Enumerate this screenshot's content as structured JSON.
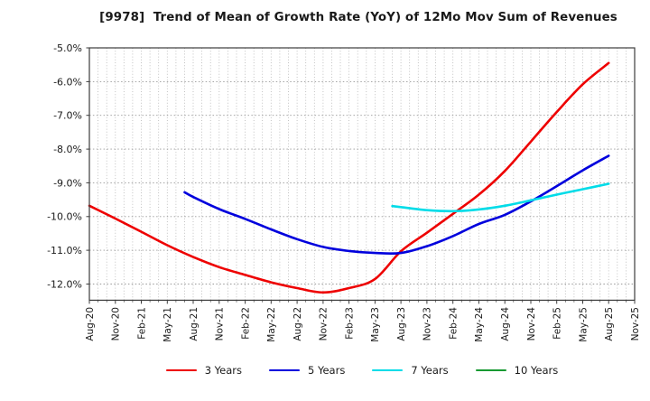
{
  "title": "[9978]  Trend of Mean of Growth Rate (YoY) of 12Mo Mov Sum of Revenues",
  "ticker": "9978",
  "chart_data": {
    "type": "line",
    "title": "[9978]  Trend of Mean of Growth Rate (YoY) of 12Mo Mov Sum of Revenues",
    "xlabel": "",
    "ylabel": "",
    "x_axis": {
      "unit": "months since Aug-2020",
      "xlim_months": [
        0,
        63
      ],
      "tick_interval_months": 3,
      "minor_grid_interval_months": 1,
      "x_ticklabels": [
        "Aug-20",
        "Nov-20",
        "Feb-21",
        "May-21",
        "Aug-21",
        "Nov-21",
        "Feb-22",
        "May-22",
        "Aug-22",
        "Nov-22",
        "Feb-23",
        "May-23",
        "Aug-23",
        "Nov-23",
        "Feb-24",
        "May-24",
        "Aug-24",
        "Nov-24",
        "Feb-25",
        "May-25",
        "Aug-25",
        "Nov-25"
      ],
      "labels_rotated_degrees": 90
    },
    "y_axis": {
      "ylim": [
        -12.48,
        -5.0
      ],
      "y_ticks": [
        -5,
        -6,
        -7,
        -8,
        -9,
        -10,
        -11,
        -12
      ],
      "y_ticklabels": [
        "-5.0%",
        "-6.0%",
        "-7.0%",
        "-8.0%",
        "-9.0%",
        "-10.0%",
        "-11.0%",
        "-12.0%"
      ],
      "unit": "percent"
    },
    "grid": {
      "enabled": true,
      "style": "dotted",
      "color": "#aaaaaa"
    },
    "legend_position": "bottom-center",
    "series": [
      {
        "name": "3 Years",
        "color": "#ee0000",
        "points_month_value": [
          [
            0,
            -9.68
          ],
          [
            3,
            -10.06
          ],
          [
            6,
            -10.45
          ],
          [
            9,
            -10.85
          ],
          [
            12,
            -11.2
          ],
          [
            15,
            -11.5
          ],
          [
            18,
            -11.73
          ],
          [
            21,
            -11.95
          ],
          [
            24,
            -12.12
          ],
          [
            27,
            -12.25
          ],
          [
            30,
            -12.12
          ],
          [
            33,
            -11.85
          ],
          [
            36,
            -11.03
          ],
          [
            39,
            -10.48
          ],
          [
            42,
            -9.92
          ],
          [
            45,
            -9.35
          ],
          [
            48,
            -8.65
          ],
          [
            51,
            -7.78
          ],
          [
            54,
            -6.9
          ],
          [
            57,
            -6.08
          ],
          [
            60,
            -5.45
          ]
        ]
      },
      {
        "name": "5 Years",
        "color": "#0000dd",
        "points_month_value": [
          [
            11,
            -9.28
          ],
          [
            12,
            -9.42
          ],
          [
            15,
            -9.78
          ],
          [
            18,
            -10.07
          ],
          [
            21,
            -10.38
          ],
          [
            24,
            -10.67
          ],
          [
            27,
            -10.9
          ],
          [
            30,
            -11.02
          ],
          [
            33,
            -11.08
          ],
          [
            36,
            -11.08
          ],
          [
            39,
            -10.88
          ],
          [
            42,
            -10.58
          ],
          [
            45,
            -10.22
          ],
          [
            48,
            -9.95
          ],
          [
            51,
            -9.55
          ],
          [
            54,
            -9.1
          ],
          [
            57,
            -8.63
          ],
          [
            60,
            -8.2
          ]
        ]
      },
      {
        "name": "7 Years",
        "color": "#00dce8",
        "points_month_value": [
          [
            35,
            -9.69
          ],
          [
            36,
            -9.72
          ],
          [
            39,
            -9.81
          ],
          [
            42,
            -9.84
          ],
          [
            45,
            -9.79
          ],
          [
            48,
            -9.68
          ],
          [
            51,
            -9.52
          ],
          [
            54,
            -9.35
          ],
          [
            57,
            -9.19
          ],
          [
            60,
            -9.03
          ]
        ]
      },
      {
        "name": "10 Years",
        "color": "#189a32",
        "points_month_value": []
      }
    ]
  },
  "legend": {
    "items": [
      {
        "label": "3 Years",
        "color": "#ee0000"
      },
      {
        "label": "5 Years",
        "color": "#0000dd"
      },
      {
        "label": "7 Years",
        "color": "#00dce8"
      },
      {
        "label": "10 Years",
        "color": "#189a32"
      }
    ]
  }
}
